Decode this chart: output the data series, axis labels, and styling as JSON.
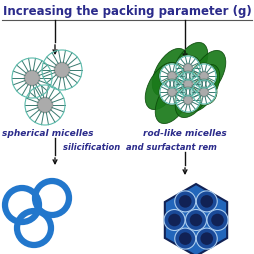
{
  "title": "Increasing the packing parameter (g)",
  "title_color": "#2b2b8b",
  "title_fontsize": 8.5,
  "bg_color": "#ffffff",
  "label_spherical": "spherical micelles",
  "label_rod": "rod-like micelles",
  "label_silicification": "silicification  and surfactant rem",
  "label_color": "#2b2b8b",
  "label_fontsize": 6.5,
  "arrow_color": "#111111",
  "teal_outer": "#5abaaa",
  "teal_inner": "#3a7a70",
  "teal_center": "#888888",
  "green_rod": "#1a7a1a",
  "green_light": "#3aaa3a",
  "blue_msn": "#2266bb",
  "blue_dark": "#112255",
  "blue_channel": "#1a3a88",
  "blue_ring": "#2277cc",
  "blue_ring_lw": 5
}
